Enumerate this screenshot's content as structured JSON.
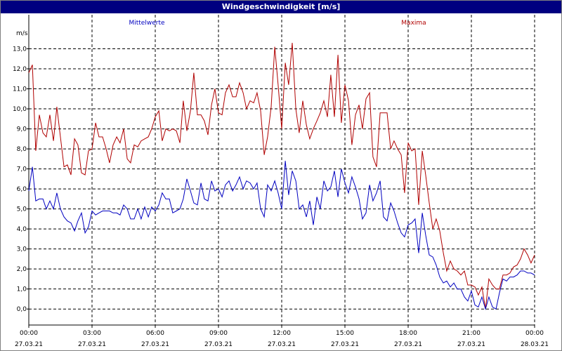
{
  "window": {
    "title": "Windgeschwindigkeit [m/s]"
  },
  "chart_data": {
    "type": "line",
    "title": "Windgeschwindigkeit [m/s]",
    "ylabel": "m/s",
    "xlabel": "",
    "ylim": [
      -0.8,
      14.0
    ],
    "xlim_hours": [
      0,
      24
    ],
    "grid": true,
    "legend_position": "top",
    "colors": {
      "mittel": "#0000c0",
      "maxima": "#b00000",
      "grid": "#000000",
      "axis": "#000000"
    },
    "yticks": [
      {
        "v": 0,
        "label": "0,0"
      },
      {
        "v": 1,
        "label": "1,0"
      },
      {
        "v": 2,
        "label": "2,0"
      },
      {
        "v": 3,
        "label": "3,0"
      },
      {
        "v": 4,
        "label": "4,0"
      },
      {
        "v": 5,
        "label": "5,0"
      },
      {
        "v": 6,
        "label": "6,0"
      },
      {
        "v": 7,
        "label": "7,0"
      },
      {
        "v": 8,
        "label": "8,0"
      },
      {
        "v": 9,
        "label": "9,0"
      },
      {
        "v": 10,
        "label": "10,0"
      },
      {
        "v": 11,
        "label": "11,0"
      },
      {
        "v": 12,
        "label": "12,0"
      },
      {
        "v": 13,
        "label": "13,0"
      }
    ],
    "xticks": [
      {
        "h": 0,
        "time": "00:00",
        "date": "27.03.21"
      },
      {
        "h": 3,
        "time": "03:00",
        "date": "27.03.21"
      },
      {
        "h": 6,
        "time": "06:00",
        "date": "27.03.21"
      },
      {
        "h": 9,
        "time": "09:00",
        "date": "27.03.21"
      },
      {
        "h": 12,
        "time": "12:00",
        "date": "27.03.21"
      },
      {
        "h": 15,
        "time": "15:00",
        "date": "27.03.21"
      },
      {
        "h": 18,
        "time": "18:00",
        "date": "27.03.21"
      },
      {
        "h": 21,
        "time": "21:00",
        "date": "27.03.21"
      },
      {
        "h": 24,
        "time": "00:00",
        "date": "28.03.21"
      }
    ],
    "series": [
      {
        "name": "Mittelwerte",
        "color": "#0000c0",
        "x": [
          0.0,
          0.17,
          0.33,
          0.5,
          0.67,
          0.83,
          1.0,
          1.17,
          1.33,
          1.5,
          1.67,
          1.83,
          2.0,
          2.17,
          2.33,
          2.5,
          2.67,
          2.83,
          3.0,
          3.17,
          3.33,
          3.5,
          3.67,
          3.83,
          4.0,
          4.17,
          4.33,
          4.5,
          4.67,
          4.83,
          5.0,
          5.17,
          5.33,
          5.5,
          5.67,
          5.83,
          6.0,
          6.17,
          6.33,
          6.5,
          6.67,
          6.83,
          7.0,
          7.17,
          7.33,
          7.5,
          7.67,
          7.83,
          8.0,
          8.17,
          8.33,
          8.5,
          8.67,
          8.83,
          9.0,
          9.17,
          9.33,
          9.5,
          9.67,
          9.83,
          10.0,
          10.17,
          10.33,
          10.5,
          10.67,
          10.83,
          11.0,
          11.17,
          11.33,
          11.5,
          11.67,
          11.83,
          12.0,
          12.17,
          12.33,
          12.5,
          12.67,
          12.83,
          13.0,
          13.17,
          13.33,
          13.5,
          13.67,
          13.83,
          14.0,
          14.17,
          14.33,
          14.5,
          14.67,
          14.83,
          15.0,
          15.17,
          15.33,
          15.5,
          15.67,
          15.83,
          16.0,
          16.17,
          16.33,
          16.5,
          16.67,
          16.83,
          17.0,
          17.17,
          17.33,
          17.5,
          17.67,
          17.83,
          18.0,
          18.17,
          18.33,
          18.5,
          18.67,
          18.83,
          19.0,
          19.17,
          19.33,
          19.5,
          19.67,
          19.83,
          20.0,
          20.17,
          20.33,
          20.5,
          20.67,
          20.83,
          21.0,
          21.17,
          21.33,
          21.5,
          21.67,
          21.83,
          22.0,
          22.17,
          22.33,
          22.5,
          22.67,
          22.83,
          23.0,
          23.17,
          23.33,
          23.5,
          23.67,
          23.83,
          24.0
        ],
        "values": [
          5.9,
          7.1,
          5.4,
          5.5,
          5.5,
          5.0,
          5.4,
          5.0,
          5.8,
          5.0,
          4.6,
          4.4,
          4.3,
          3.9,
          4.4,
          4.8,
          3.8,
          4.1,
          4.9,
          4.7,
          4.8,
          4.9,
          4.9,
          4.9,
          4.8,
          4.8,
          4.7,
          5.2,
          5.0,
          4.5,
          4.5,
          5.0,
          4.5,
          5.1,
          4.6,
          5.1,
          4.9,
          5.2,
          5.8,
          5.5,
          5.5,
          4.8,
          4.9,
          5.0,
          5.5,
          6.5,
          5.9,
          5.3,
          5.2,
          6.3,
          5.5,
          5.4,
          6.4,
          5.9,
          6.0,
          5.6,
          6.2,
          6.4,
          5.9,
          6.2,
          6.6,
          6.0,
          6.4,
          6.3,
          6.0,
          6.3,
          5.0,
          4.6,
          6.2,
          5.9,
          6.4,
          5.8,
          5.0,
          7.4,
          5.7,
          6.9,
          6.4,
          5.0,
          5.2,
          4.6,
          5.4,
          4.2,
          5.6,
          5.0,
          6.4,
          5.9,
          6.1,
          6.9,
          5.6,
          7.0,
          6.3,
          5.8,
          6.6,
          6.1,
          5.5,
          4.5,
          4.8,
          6.2,
          5.4,
          5.8,
          6.4,
          4.6,
          4.4,
          5.3,
          4.9,
          4.3,
          3.8,
          3.6,
          4.2,
          4.3,
          4.5,
          2.8,
          4.8,
          3.7,
          2.7,
          2.6,
          2.2,
          1.6,
          1.3,
          1.4,
          1.1,
          1.3,
          1.0,
          1.0,
          0.6,
          0.4,
          0.9,
          0.2,
          0.1,
          0.6,
          0.0,
          0.6,
          0.1,
          0.0,
          0.8,
          1.5,
          1.4,
          1.6,
          1.6,
          1.7,
          1.9,
          1.9,
          1.8,
          1.8,
          1.7
        ]
      },
      {
        "name": "Maxima",
        "color": "#b00000",
        "x": [
          0.0,
          0.17,
          0.33,
          0.5,
          0.67,
          0.83,
          1.0,
          1.17,
          1.33,
          1.5,
          1.67,
          1.83,
          2.0,
          2.17,
          2.33,
          2.5,
          2.67,
          2.83,
          3.0,
          3.17,
          3.33,
          3.5,
          3.67,
          3.83,
          4.0,
          4.17,
          4.33,
          4.5,
          4.67,
          4.83,
          5.0,
          5.17,
          5.33,
          5.5,
          5.67,
          5.83,
          6.0,
          6.17,
          6.33,
          6.5,
          6.67,
          6.83,
          7.0,
          7.17,
          7.33,
          7.5,
          7.67,
          7.83,
          8.0,
          8.17,
          8.33,
          8.5,
          8.67,
          8.83,
          9.0,
          9.17,
          9.33,
          9.5,
          9.67,
          9.83,
          10.0,
          10.17,
          10.33,
          10.5,
          10.67,
          10.83,
          11.0,
          11.17,
          11.33,
          11.5,
          11.67,
          11.83,
          12.0,
          12.17,
          12.33,
          12.5,
          12.67,
          12.83,
          13.0,
          13.17,
          13.33,
          13.5,
          13.67,
          13.83,
          14.0,
          14.17,
          14.33,
          14.5,
          14.67,
          14.83,
          15.0,
          15.17,
          15.33,
          15.5,
          15.67,
          15.83,
          16.0,
          16.17,
          16.33,
          16.5,
          16.67,
          16.83,
          17.0,
          17.17,
          17.33,
          17.5,
          17.67,
          17.83,
          18.0,
          18.17,
          18.33,
          18.5,
          18.67,
          18.83,
          19.0,
          19.17,
          19.33,
          19.5,
          19.67,
          19.83,
          20.0,
          20.17,
          20.33,
          20.5,
          20.67,
          20.83,
          21.0,
          21.17,
          21.33,
          21.5,
          21.67,
          21.83,
          22.0,
          22.17,
          22.33,
          22.5,
          22.67,
          22.83,
          23.0,
          23.17,
          23.33,
          23.5,
          23.67,
          23.83,
          24.0
        ],
        "values": [
          11.8,
          12.2,
          7.9,
          9.7,
          8.8,
          8.6,
          9.7,
          8.4,
          10.1,
          8.6,
          7.1,
          7.2,
          6.7,
          8.5,
          8.2,
          6.8,
          6.7,
          7.9,
          8.0,
          9.3,
          8.6,
          8.6,
          8.0,
          7.3,
          8.2,
          8.6,
          8.3,
          9.0,
          7.5,
          7.3,
          8.2,
          8.1,
          8.4,
          8.5,
          8.6,
          9.0,
          9.6,
          9.9,
          8.4,
          9.0,
          8.9,
          9.0,
          8.9,
          8.3,
          10.4,
          8.9,
          9.9,
          11.8,
          9.7,
          9.7,
          9.4,
          8.7,
          10.2,
          11.0,
          9.8,
          9.7,
          10.8,
          11.2,
          10.6,
          10.6,
          11.3,
          10.8,
          10.0,
          10.4,
          10.3,
          10.8,
          9.9,
          7.7,
          8.6,
          10.1,
          13.1,
          11.2,
          9.0,
          12.3,
          11.2,
          13.3,
          10.0,
          8.8,
          10.4,
          9.2,
          8.5,
          9.0,
          9.4,
          9.8,
          10.4,
          9.6,
          11.7,
          9.6,
          12.7,
          9.3,
          11.2,
          10.4,
          8.2,
          9.7,
          10.2,
          9.0,
          10.5,
          10.8,
          7.6,
          7.1,
          9.8,
          9.8,
          9.8,
          8.0,
          8.4,
          8.0,
          7.7,
          5.8,
          8.3,
          7.9,
          8.0,
          5.2,
          7.9,
          6.7,
          5.3,
          4.0,
          4.5,
          3.9,
          2.8,
          1.9,
          2.4,
          2.0,
          1.9,
          1.7,
          1.9,
          1.2,
          1.2,
          1.1,
          0.7,
          1.1,
          0.0,
          1.5,
          1.2,
          1.0,
          1.0,
          1.7,
          1.7,
          1.8,
          2.1,
          2.2,
          2.5,
          3.0,
          2.7,
          2.3,
          2.7
        ]
      }
    ]
  }
}
